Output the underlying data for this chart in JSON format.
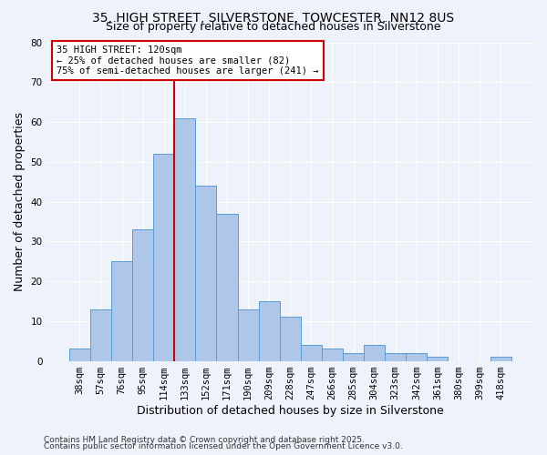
{
  "title1": "35, HIGH STREET, SILVERSTONE, TOWCESTER, NN12 8US",
  "title2": "Size of property relative to detached houses in Silverstone",
  "xlabel": "Distribution of detached houses by size in Silverstone",
  "ylabel": "Number of detached properties",
  "categories": [
    "38sqm",
    "57sqm",
    "76sqm",
    "95sqm",
    "114sqm",
    "133sqm",
    "152sqm",
    "171sqm",
    "190sqm",
    "209sqm",
    "228sqm",
    "247sqm",
    "266sqm",
    "285sqm",
    "304sqm",
    "323sqm",
    "342sqm",
    "361sqm",
    "380sqm",
    "399sqm",
    "418sqm"
  ],
  "values": [
    3,
    13,
    25,
    33,
    52,
    61,
    44,
    37,
    13,
    15,
    11,
    4,
    3,
    2,
    4,
    2,
    2,
    1,
    0,
    0,
    1
  ],
  "bar_color": "#aec6e8",
  "bar_edge_color": "#5b9bd5",
  "vline_color": "#cc0000",
  "annotation_title": "35 HIGH STREET: 120sqm",
  "annotation_line2": "← 25% of detached houses are smaller (82)",
  "annotation_line3": "75% of semi-detached houses are larger (241) →",
  "annotation_box_color": "#cc0000",
  "ylim": [
    0,
    80
  ],
  "yticks": [
    0,
    10,
    20,
    30,
    40,
    50,
    60,
    70,
    80
  ],
  "footnote1": "Contains HM Land Registry data © Crown copyright and database right 2025.",
  "footnote2": "Contains public sector information licensed under the Open Government Licence v3.0.",
  "background_color": "#eef2fb",
  "grid_color": "#ffffff",
  "title_fontsize": 10,
  "subtitle_fontsize": 9,
  "axis_label_fontsize": 9,
  "tick_fontsize": 7.5,
  "footnote_fontsize": 6.5
}
